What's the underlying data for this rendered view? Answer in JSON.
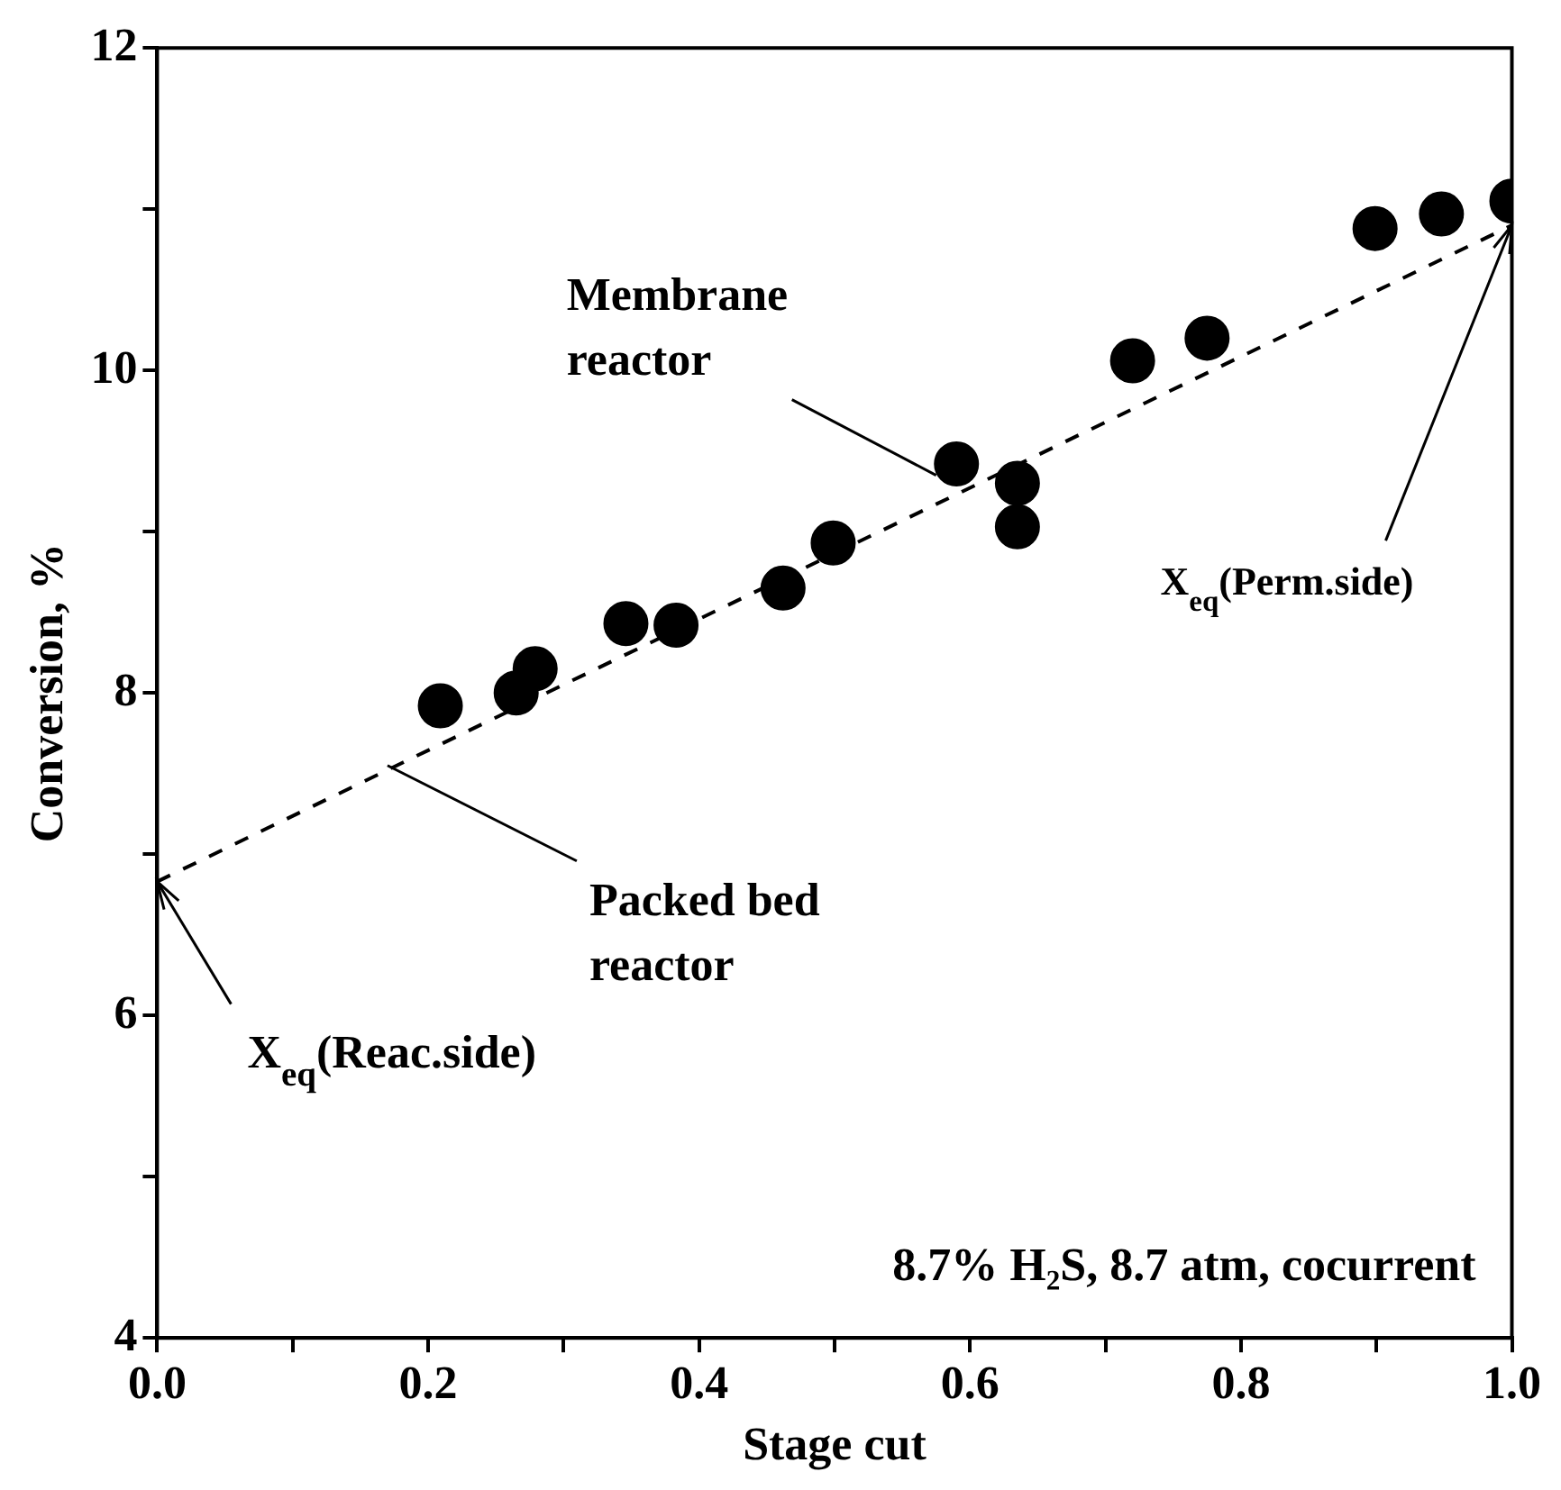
{
  "chart_data": {
    "type": "scatter",
    "xlabel": "Stage cut",
    "ylabel": "Conversion, %",
    "xlim": [
      0,
      1
    ],
    "ylim": [
      4,
      12
    ],
    "xticks": [
      {
        "value": 0,
        "label": "0.0"
      },
      {
        "value": 0.1,
        "label": null
      },
      0.2,
      {
        "value": 0.3,
        "label": null
      },
      0.4,
      {
        "value": 0.5,
        "label": null
      },
      0.6,
      {
        "value": 0.7,
        "label": null
      },
      0.8,
      {
        "value": 0.9,
        "label": null
      },
      {
        "value": 1,
        "label": "1.0"
      }
    ],
    "yticks": [
      4,
      {
        "value": 5,
        "label": null
      },
      6,
      {
        "value": 7,
        "label": null
      },
      8,
      {
        "value": 9,
        "label": null
      },
      10,
      {
        "value": 11,
        "label": null
      },
      12
    ],
    "grid": false,
    "legend": false,
    "marker": "circle",
    "series": [
      {
        "color": "#000000",
        "x": [
          0.209,
          0.265,
          0.279,
          0.346,
          0.383,
          0.462,
          0.499,
          0.59,
          0.635,
          0.635,
          0.72,
          0.775,
          0.899,
          0.948,
          1.0
        ],
        "values": [
          7.92,
          8.0,
          8.15,
          8.43,
          8.42,
          8.65,
          8.93,
          9.42,
          9.3,
          9.03,
          10.06,
          10.2,
          10.88,
          10.97,
          11.05
        ]
      },
      {
        "type": "line",
        "color": "#000000",
        "line_style": "dashed",
        "marker": "none",
        "x": [
          0,
          1
        ],
        "values": [
          6.83,
          10.9
        ]
      }
    ],
    "annotations": [
      {
        "text": "Membrane reactor",
        "x": 0.575,
        "y": 9.35
      },
      {
        "text": "Packed bed reactor",
        "x": 0.17,
        "y": 7.55
      },
      {
        "text": "X$_{eq}$(Reac.side)",
        "x": 0,
        "y": 6.83
      },
      {
        "text": "X$_{eq}$(Perm.side)",
        "x": 1,
        "y": 10.9
      },
      "8.7% H₂S, 8.7 atm, cocurrent"
    ]
  }
}
